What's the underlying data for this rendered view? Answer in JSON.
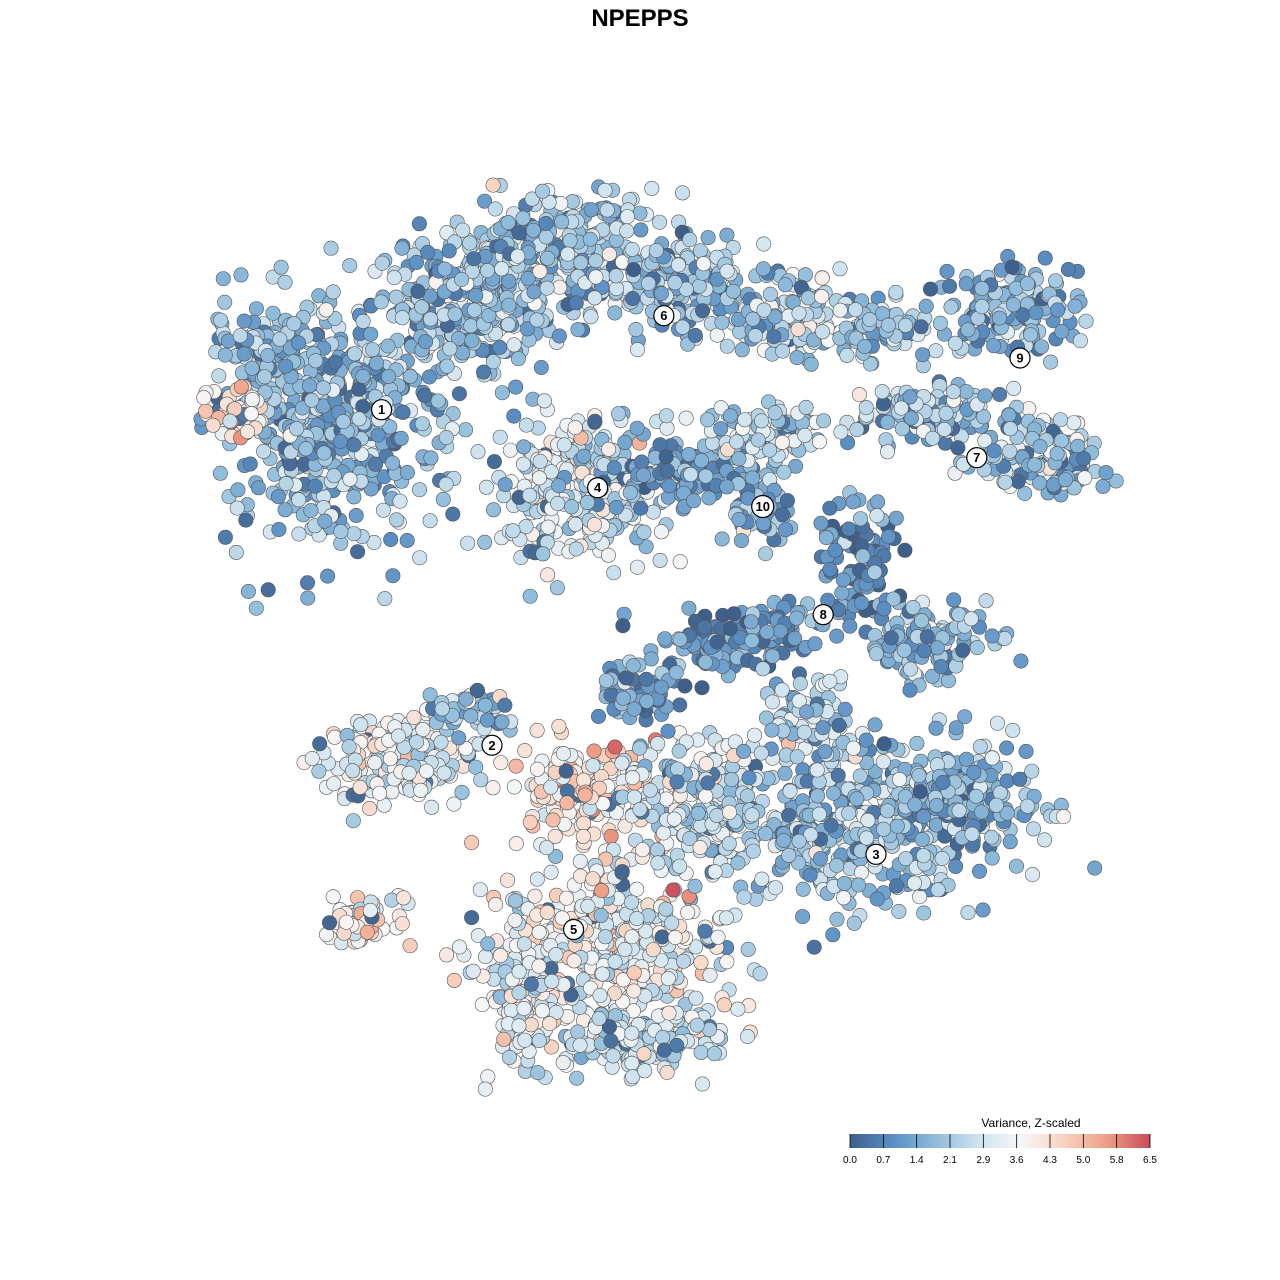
{
  "chart_data": {
    "type": "scatter",
    "title": "NPEPPS",
    "xlabel": "",
    "ylabel": "",
    "grid": false,
    "legend": {
      "title": "Variance, Z-scaled",
      "position": "bottom-right",
      "ticks": [
        "0.0",
        "0.7",
        "1.4",
        "2.1",
        "2.9",
        "3.6",
        "4.3",
        "5.0",
        "5.8",
        "6.5"
      ],
      "range": [
        0.0,
        6.5
      ],
      "colors": [
        "#3e5f8a",
        "#5b8fc4",
        "#8fbcdb",
        "#cfe3ef",
        "#f7f7f7",
        "#f8d2bf",
        "#ee9e86",
        "#c94a5a"
      ]
    },
    "clusters": [
      {
        "label": "1",
        "x": 0.21,
        "y": 0.745,
        "mean": 1.4
      },
      {
        "label": "2",
        "x": 0.325,
        "y": 0.388,
        "mean": 3.0
      },
      {
        "label": "3",
        "x": 0.725,
        "y": 0.272,
        "mean": 2.1
      },
      {
        "label": "4",
        "x": 0.435,
        "y": 0.662,
        "mean": 2.5
      },
      {
        "label": "5",
        "x": 0.41,
        "y": 0.192,
        "mean": 3.2
      },
      {
        "label": "6",
        "x": 0.504,
        "y": 0.845,
        "mean": 1.6
      },
      {
        "label": "7",
        "x": 0.83,
        "y": 0.694,
        "mean": 1.7
      },
      {
        "label": "8",
        "x": 0.67,
        "y": 0.527,
        "mean": 0.6
      },
      {
        "label": "9",
        "x": 0.875,
        "y": 0.8,
        "mean": 1.4
      },
      {
        "label": "10",
        "x": 0.607,
        "y": 0.642,
        "mean": 1.2
      }
    ]
  }
}
